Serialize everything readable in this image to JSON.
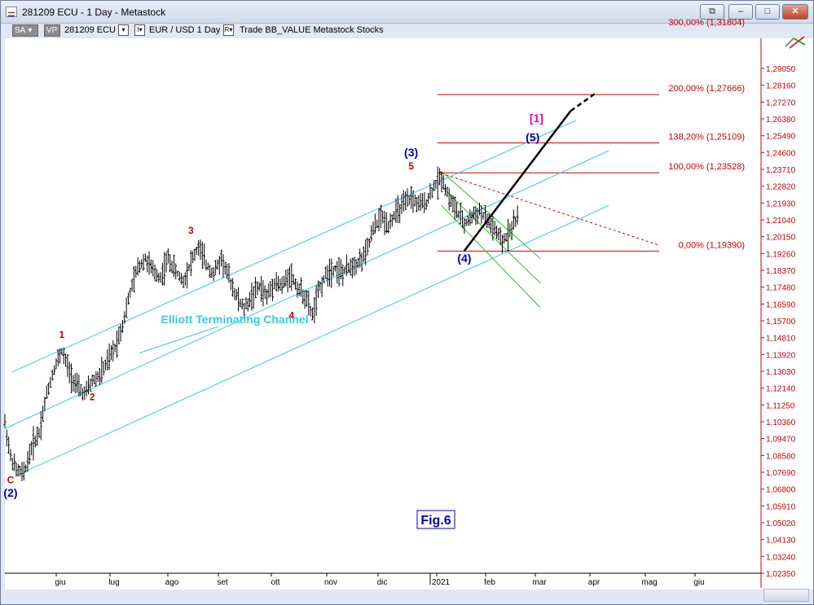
{
  "window": {
    "title": "281209 ECU - 1 Day - Metastock",
    "buttons": {
      "restore": "⧉",
      "minimize": "–",
      "maximize": "□",
      "close": "✕"
    }
  },
  "toolbar": {
    "sa_button": "SA",
    "vp_button": "VP",
    "symbol": "281209 ECU",
    "instrument": "EUR / USD  1 Day",
    "tags": "Trade  BB_VALUE  Metastock  Stocks",
    "dropdown_glyph": "▾",
    "i_glyph": "I▾",
    "r_glyph": "R▾"
  },
  "chart_data": {
    "type": "ohlc-bar",
    "instrument": "EUR/USD",
    "period": "1 Day",
    "y_axis": {
      "side": "right",
      "ticks": [
        "1,29050",
        "1,28160",
        "1,27270",
        "1,26380",
        "1,25490",
        "1,24600",
        "1,23710",
        "1,22820",
        "1,21930",
        "1,21040",
        "1,20150",
        "1,19260",
        "1,18370",
        "1,17480",
        "1,16590",
        "1,15700",
        "1,14810",
        "1,13920",
        "1,13030",
        "1,12140",
        "1,11250",
        "1,10360",
        "1,09470",
        "1,08580",
        "1,07690",
        "1,06800",
        "1,05910",
        "1,05020",
        "1,04130",
        "1,03240",
        "1,02350"
      ],
      "ylim": [
        1.0235,
        1.318
      ]
    },
    "x_axis": {
      "ticks": [
        "giu",
        "lug",
        "ago",
        "set",
        "ott",
        "nov",
        "dic",
        "2021",
        "feb",
        "mar",
        "apr",
        "mag",
        "giu"
      ]
    },
    "price_path": [
      [
        0,
        1.103
      ],
      [
        3,
        1.085
      ],
      [
        6,
        1.078
      ],
      [
        10,
        1.076
      ],
      [
        14,
        1.09
      ],
      [
        18,
        1.098
      ],
      [
        22,
        1.118
      ],
      [
        26,
        1.132
      ],
      [
        30,
        1.141
      ],
      [
        34,
        1.13
      ],
      [
        38,
        1.122
      ],
      [
        42,
        1.118
      ],
      [
        46,
        1.125
      ],
      [
        50,
        1.128
      ],
      [
        54,
        1.135
      ],
      [
        58,
        1.143
      ],
      [
        62,
        1.155
      ],
      [
        66,
        1.172
      ],
      [
        70,
        1.185
      ],
      [
        74,
        1.19
      ],
      [
        78,
        1.183
      ],
      [
        82,
        1.18
      ],
      [
        86,
        1.19
      ],
      [
        90,
        1.183
      ],
      [
        94,
        1.178
      ],
      [
        98,
        1.188
      ],
      [
        102,
        1.196
      ],
      [
        106,
        1.187
      ],
      [
        110,
        1.182
      ],
      [
        114,
        1.19
      ],
      [
        118,
        1.18
      ],
      [
        122,
        1.17
      ],
      [
        126,
        1.163
      ],
      [
        130,
        1.17
      ],
      [
        134,
        1.175
      ],
      [
        138,
        1.17
      ],
      [
        142,
        1.178
      ],
      [
        146,
        1.175
      ],
      [
        150,
        1.182
      ],
      [
        154,
        1.175
      ],
      [
        158,
        1.17
      ],
      [
        162,
        1.16
      ],
      [
        166,
        1.175
      ],
      [
        170,
        1.183
      ],
      [
        174,
        1.185
      ],
      [
        178,
        1.182
      ],
      [
        182,
        1.186
      ],
      [
        186,
        1.188
      ],
      [
        190,
        1.192
      ],
      [
        194,
        1.205
      ],
      [
        198,
        1.212
      ],
      [
        202,
        1.208
      ],
      [
        206,
        1.214
      ],
      [
        210,
        1.218
      ],
      [
        214,
        1.222
      ],
      [
        218,
        1.218
      ],
      [
        222,
        1.22
      ],
      [
        226,
        1.228
      ],
      [
        230,
        1.233
      ],
      [
        234,
        1.222
      ],
      [
        238,
        1.215
      ],
      [
        242,
        1.208
      ],
      [
        246,
        1.212
      ],
      [
        250,
        1.215
      ],
      [
        254,
        1.21
      ],
      [
        258,
        1.205
      ],
      [
        262,
        1.198
      ],
      [
        266,
        1.205
      ],
      [
        270,
        1.212
      ]
    ],
    "fibonacci": [
      {
        "label": "200,00% (1,27666)",
        "value": 1.27666
      },
      {
        "label": "138,20% (1,25109)",
        "value": 1.25109
      },
      {
        "label": "100,00% (1,23528)",
        "value": 1.23528
      },
      {
        "label": "0,00% (1,19390)",
        "value": 1.1939
      },
      {
        "label": "300,00% (1,31804)",
        "value": 1.31804
      }
    ],
    "waves": [
      {
        "label": "C",
        "color": "#cc0000",
        "day": 3,
        "price": 1.071
      },
      {
        "label": "(2)",
        "color": "#0000aa",
        "day": 3,
        "price": 1.064
      },
      {
        "label": "1",
        "color": "#cc0000",
        "day": 30,
        "price": 1.148
      },
      {
        "label": "2",
        "color": "#cc0000",
        "day": 46,
        "price": 1.115
      },
      {
        "label": "3",
        "color": "#cc0000",
        "day": 98,
        "price": 1.203
      },
      {
        "label": "4",
        "color": "#cc0000",
        "day": 151,
        "price": 1.158
      },
      {
        "label": "5",
        "color": "#cc0000",
        "day": 214,
        "price": 1.237
      },
      {
        "label": "(3)",
        "color": "#0000aa",
        "day": 214,
        "price": 1.244
      },
      {
        "label": "(4)",
        "color": "#0000aa",
        "day": 242,
        "price": 1.188
      },
      {
        "label": "(5)",
        "color": "#0000aa",
        "day": 278,
        "price": 1.252
      },
      {
        "label": "[1]",
        "color": "#dd00dd",
        "day": 280,
        "price": 1.262
      }
    ],
    "annotations": {
      "channel_label": "Elliott Terminating Channel",
      "figure_label": "Fig.6"
    },
    "colors": {
      "bars": "#000000",
      "channel": "#33ccee",
      "corrective_channel": "#33bb33",
      "fib": "#cc0000",
      "projection": "#000000",
      "axis_text": "#cc0000",
      "background": "#ffffff"
    }
  }
}
